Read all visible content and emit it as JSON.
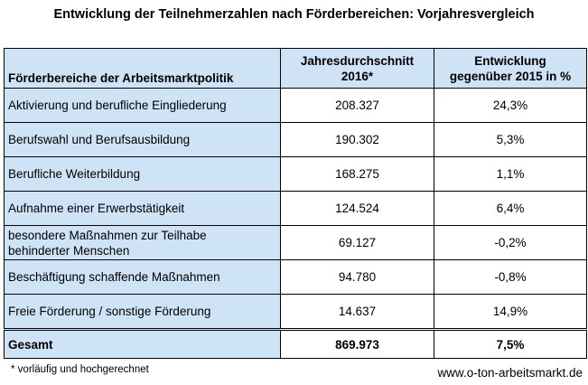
{
  "title": "Entwicklung der Teilnehmerzahlen nach Förderbereichen: Vorjahresvergleich",
  "table": {
    "headers": [
      "Förderbereiche der Arbeitsmarktpolitik",
      [
        "Jahresdurchschnitt",
        "2016*"
      ],
      [
        "Entwicklung",
        "gegenüber 2015 in %"
      ]
    ],
    "rows": [
      {
        "label": [
          "Aktivierung und berufliche Eingliederung"
        ],
        "value": "208.327",
        "change": "24,3%"
      },
      {
        "label": [
          "Berufswahl und Berufsausbildung"
        ],
        "value": "190.302",
        "change": "5,3%"
      },
      {
        "label": [
          "Berufliche Weiterbildung"
        ],
        "value": "168.275",
        "change": "1,1%"
      },
      {
        "label": [
          "Aufnahme einer Erwerbstätigkeit"
        ],
        "value": "124.524",
        "change": "6,4%"
      },
      {
        "label": [
          "besondere Maßnahmen zur Teilhabe",
          "behinderter Menschen"
        ],
        "value": "69.127",
        "change": "-0,2%"
      },
      {
        "label": [
          "Beschäftigung schaffende Maßnahmen"
        ],
        "value": "94.780",
        "change": "-0,8%"
      },
      {
        "label": [
          "Freie Förderung / sonstige Förderung"
        ],
        "value": "14.637",
        "change": "14,9%"
      }
    ],
    "total": {
      "label": "Gesamt",
      "value": "869.973",
      "change": "7,5%"
    }
  },
  "footnote": "* vorläufig und hochgerechnet",
  "website": "www.o-ton-arbeitsmarkt.de",
  "colors": {
    "header_bg": "#cfe3f7",
    "label_bg": "#cfe3f7"
  }
}
